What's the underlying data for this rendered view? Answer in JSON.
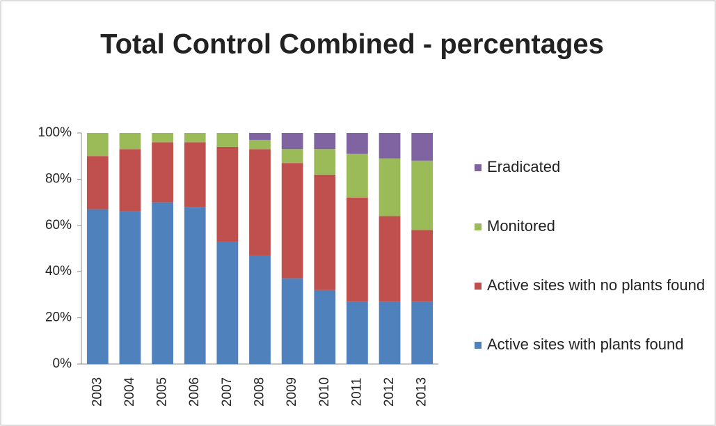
{
  "chart_data": {
    "type": "bar",
    "stacked": true,
    "title": "Total Control Combined - percentages",
    "categories": [
      "2003",
      "2004",
      "2005",
      "2006",
      "2007",
      "2008",
      "2009",
      "2010",
      "2011",
      "2012",
      "2013"
    ],
    "series": [
      {
        "name": "Active sites with plants found",
        "color": "#4f81bd",
        "values": [
          67,
          66,
          70,
          68,
          53,
          47,
          37,
          32,
          27,
          27,
          27
        ]
      },
      {
        "name": "Active sites with no plants found",
        "color": "#c0504d",
        "values": [
          23,
          27,
          26,
          28,
          41,
          46,
          50,
          50,
          45,
          37,
          31
        ]
      },
      {
        "name": "Monitored",
        "color": "#9bbb59",
        "values": [
          10,
          7,
          4,
          4,
          6,
          4,
          6,
          11,
          19,
          25,
          30
        ]
      },
      {
        "name": "Eradicated",
        "color": "#8064a2",
        "values": [
          0,
          0,
          0,
          0,
          0,
          3,
          7,
          7,
          9,
          11,
          12
        ]
      }
    ],
    "ylim": [
      0,
      100
    ],
    "yticks": [
      {
        "value": 0,
        "label": "0%"
      },
      {
        "value": 20,
        "label": "20%"
      },
      {
        "value": 40,
        "label": "40%"
      },
      {
        "value": 60,
        "label": "60%"
      },
      {
        "value": 80,
        "label": "80%"
      },
      {
        "value": 100,
        "label": "100%"
      }
    ],
    "grid": false,
    "legend": "right"
  }
}
